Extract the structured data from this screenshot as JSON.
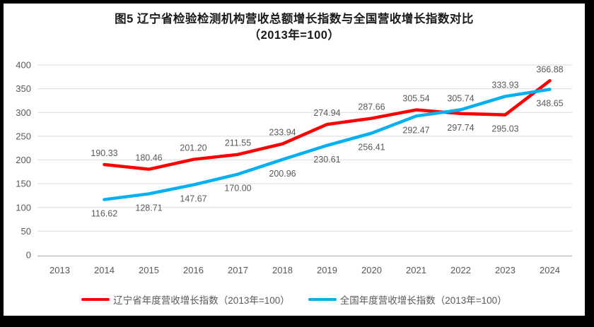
{
  "title": {
    "line1": "图5  辽宁省检验检测机构营收总额增长指数与全国营收增长指数对比",
    "line2": "（2013年=100）"
  },
  "colors": {
    "liaoning": "#ff0000",
    "national": "#00b0f0",
    "grid": "#e2e2e2",
    "axis": "#bfbfbf",
    "tick_text": "#595959",
    "data_label": "#595959",
    "legend_text": "#595959",
    "frame_border": "#000000"
  },
  "chart_data": {
    "type": "line",
    "title": "图5 辽宁省检验检测机构营收总额增长指数与全国营收增长指数对比（2013年=100）",
    "categories": [
      "2013",
      "2014",
      "2015",
      "2016",
      "2017",
      "2018",
      "2019",
      "2020",
      "2021",
      "2022",
      "2023",
      "2024"
    ],
    "series": [
      {
        "key": "liaoning",
        "name": "辽宁省年度营收增长指数（2013年=100）",
        "color": "#ff0000",
        "values": [
          null,
          190.33,
          180.46,
          201.2,
          211.55,
          233.94,
          274.94,
          287.66,
          305.54,
          297.74,
          295.03,
          366.88
        ],
        "label_placement": [
          null,
          "above",
          "above",
          "above",
          "above",
          "above",
          "above",
          "above",
          "above",
          "below",
          "below",
          "above"
        ]
      },
      {
        "key": "national",
        "name": "全国年度营收增长指数（2013年=100）",
        "color": "#00b0f0",
        "values": [
          null,
          116.62,
          128.71,
          147.67,
          170.0,
          200.96,
          230.61,
          256.41,
          292.47,
          305.74,
          333.93,
          348.65
        ],
        "label_placement": [
          null,
          "below",
          "below",
          "below",
          "below",
          "below",
          "below",
          "below",
          "below",
          "above",
          "above",
          "below"
        ]
      }
    ],
    "xlabel": "",
    "ylabel": "",
    "ylim": [
      0,
      400
    ],
    "yticks": [
      0,
      50,
      100,
      150,
      200,
      250,
      300,
      350,
      400
    ],
    "grid": true,
    "legend_position": "bottom",
    "label_decimals": 2
  },
  "legend": {
    "items": [
      {
        "label": "辽宁省年度营收增长指数（2013年=100）",
        "color": "#ff0000"
      },
      {
        "label": "全国年度营收增长指数（2013年=100）",
        "color": "#00b0f0"
      }
    ]
  }
}
